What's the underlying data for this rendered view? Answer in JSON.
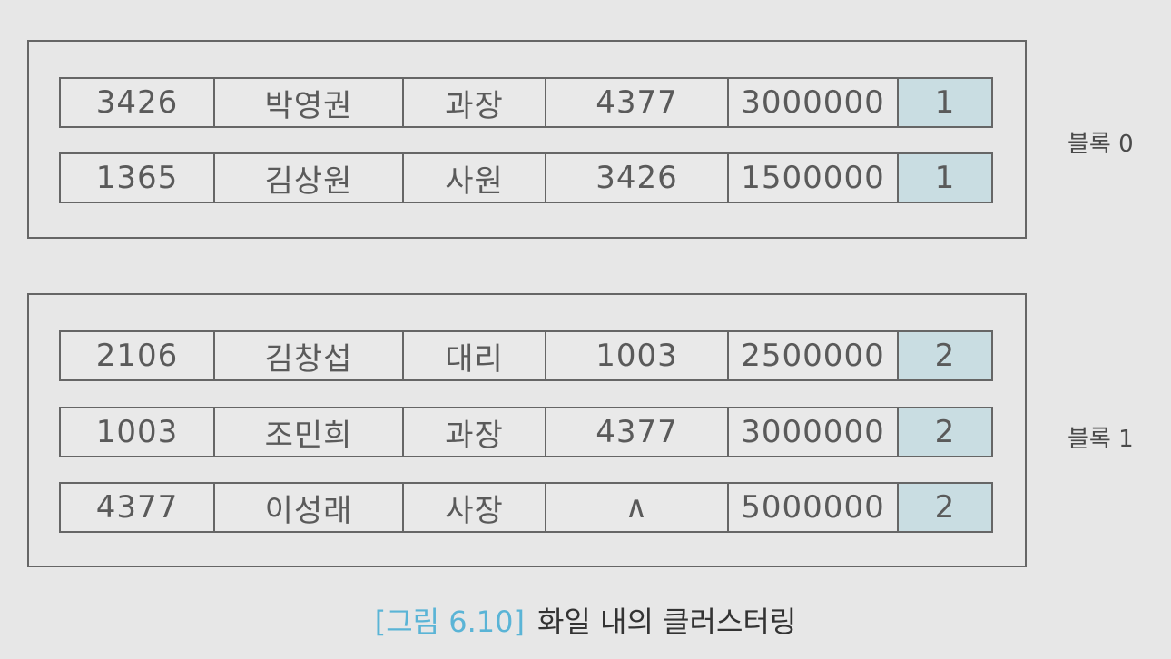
{
  "blocks": [
    {
      "label": "블록 0",
      "records": [
        {
          "id": "3426",
          "name": "박영권",
          "position": "과장",
          "manager": "4377",
          "salary": "3000000",
          "block": "1"
        },
        {
          "id": "1365",
          "name": "김상원",
          "position": "사원",
          "manager": "3426",
          "salary": "1500000",
          "block": "1"
        }
      ]
    },
    {
      "label": "블록 1",
      "records": [
        {
          "id": "2106",
          "name": "김창섭",
          "position": "대리",
          "manager": "1003",
          "salary": "2500000",
          "block": "2"
        },
        {
          "id": "1003",
          "name": "조민희",
          "position": "과장",
          "manager": "4377",
          "salary": "3000000",
          "block": "2"
        },
        {
          "id": "4377",
          "name": "이성래",
          "position": "사장",
          "manager": "∧",
          "salary": "5000000",
          "block": "2"
        }
      ]
    }
  ],
  "caption": {
    "number": "[그림 6.10]",
    "title": "화일 내의 클러스터링"
  },
  "colors": {
    "block_column_fill": "#c9dde2",
    "caption_number": "#5ab4d6"
  }
}
